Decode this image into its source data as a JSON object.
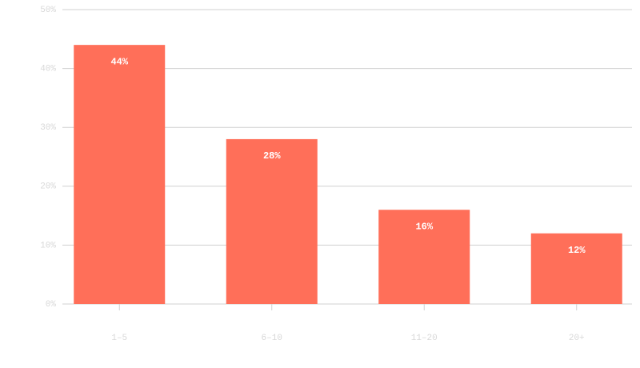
{
  "chart_data": {
    "type": "bar",
    "categories": [
      "1–5",
      "6–10",
      "11–20",
      "20+"
    ],
    "values": [
      44,
      28,
      16,
      12
    ],
    "value_labels": [
      "44%",
      "28%",
      "16%",
      "12%"
    ],
    "color": "#ff6f59",
    "ylim": [
      0,
      50
    ],
    "yticks": [
      {
        "value": 0,
        "label": "0%"
      },
      {
        "value": 10,
        "label": "10%"
      },
      {
        "value": 20,
        "label": "20%"
      },
      {
        "value": 30,
        "label": "30%"
      },
      {
        "value": 40,
        "label": "40%"
      },
      {
        "value": 50,
        "label": "50%"
      }
    ],
    "grid": true
  }
}
